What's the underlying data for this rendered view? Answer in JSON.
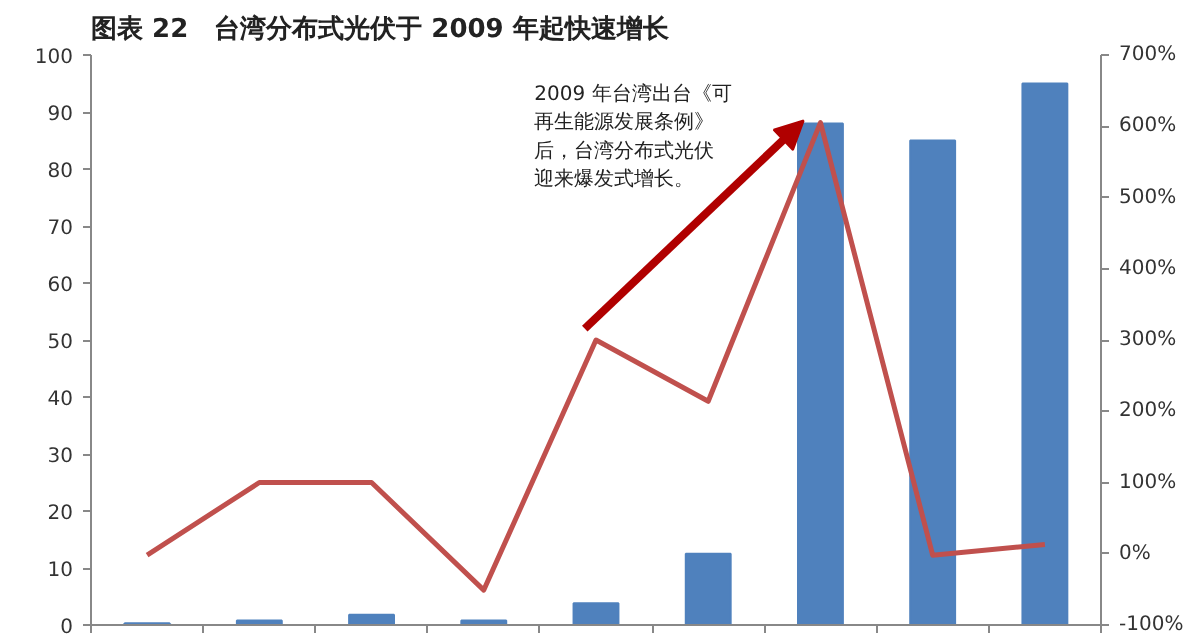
{
  "chart_data": {
    "type": "bar",
    "title": "图表 22　台湾分布式光伏于 2009 年起快速增长",
    "categories": [
      null,
      null,
      null,
      null,
      null,
      null,
      null,
      null,
      null
    ],
    "series": [
      {
        "color": "#4f81bd",
        "values": [
          0.3,
          0.8,
          1.8,
          0.8,
          3.8,
          12.5,
          88,
          85,
          95
        ]
      },
      {
        "type": "line",
        "axis": "y2",
        "color": "#c0504d",
        "values": [
          -2,
          100,
          100,
          -51,
          300,
          214,
          605,
          -2,
          13
        ]
      }
    ],
    "ylim": [
      0,
      100
    ],
    "yticks": [
      0,
      10,
      20,
      30,
      40,
      50,
      60,
      70,
      80,
      90,
      100
    ],
    "y2lim": [
      -100,
      700
    ],
    "y2ticks": [
      {
        "value": -100,
        "label": "-100%"
      },
      {
        "value": 0,
        "label": "0%"
      },
      {
        "value": 100,
        "label": "100%"
      },
      {
        "value": 200,
        "label": "200%"
      },
      {
        "value": 300,
        "label": "300%"
      },
      {
        "value": 400,
        "label": "400%"
      },
      {
        "value": 500,
        "label": "500%"
      },
      {
        "value": 600,
        "label": "600%"
      },
      {
        "value": 700,
        "label": "700%"
      }
    ],
    "annotations": [
      "2009 年台湾出台《可再生能源发展条例》后，台湾分布式光伏迎来爆发式增长。"
    ],
    "grid": false,
    "marker": "none",
    "line_style": "solid"
  }
}
